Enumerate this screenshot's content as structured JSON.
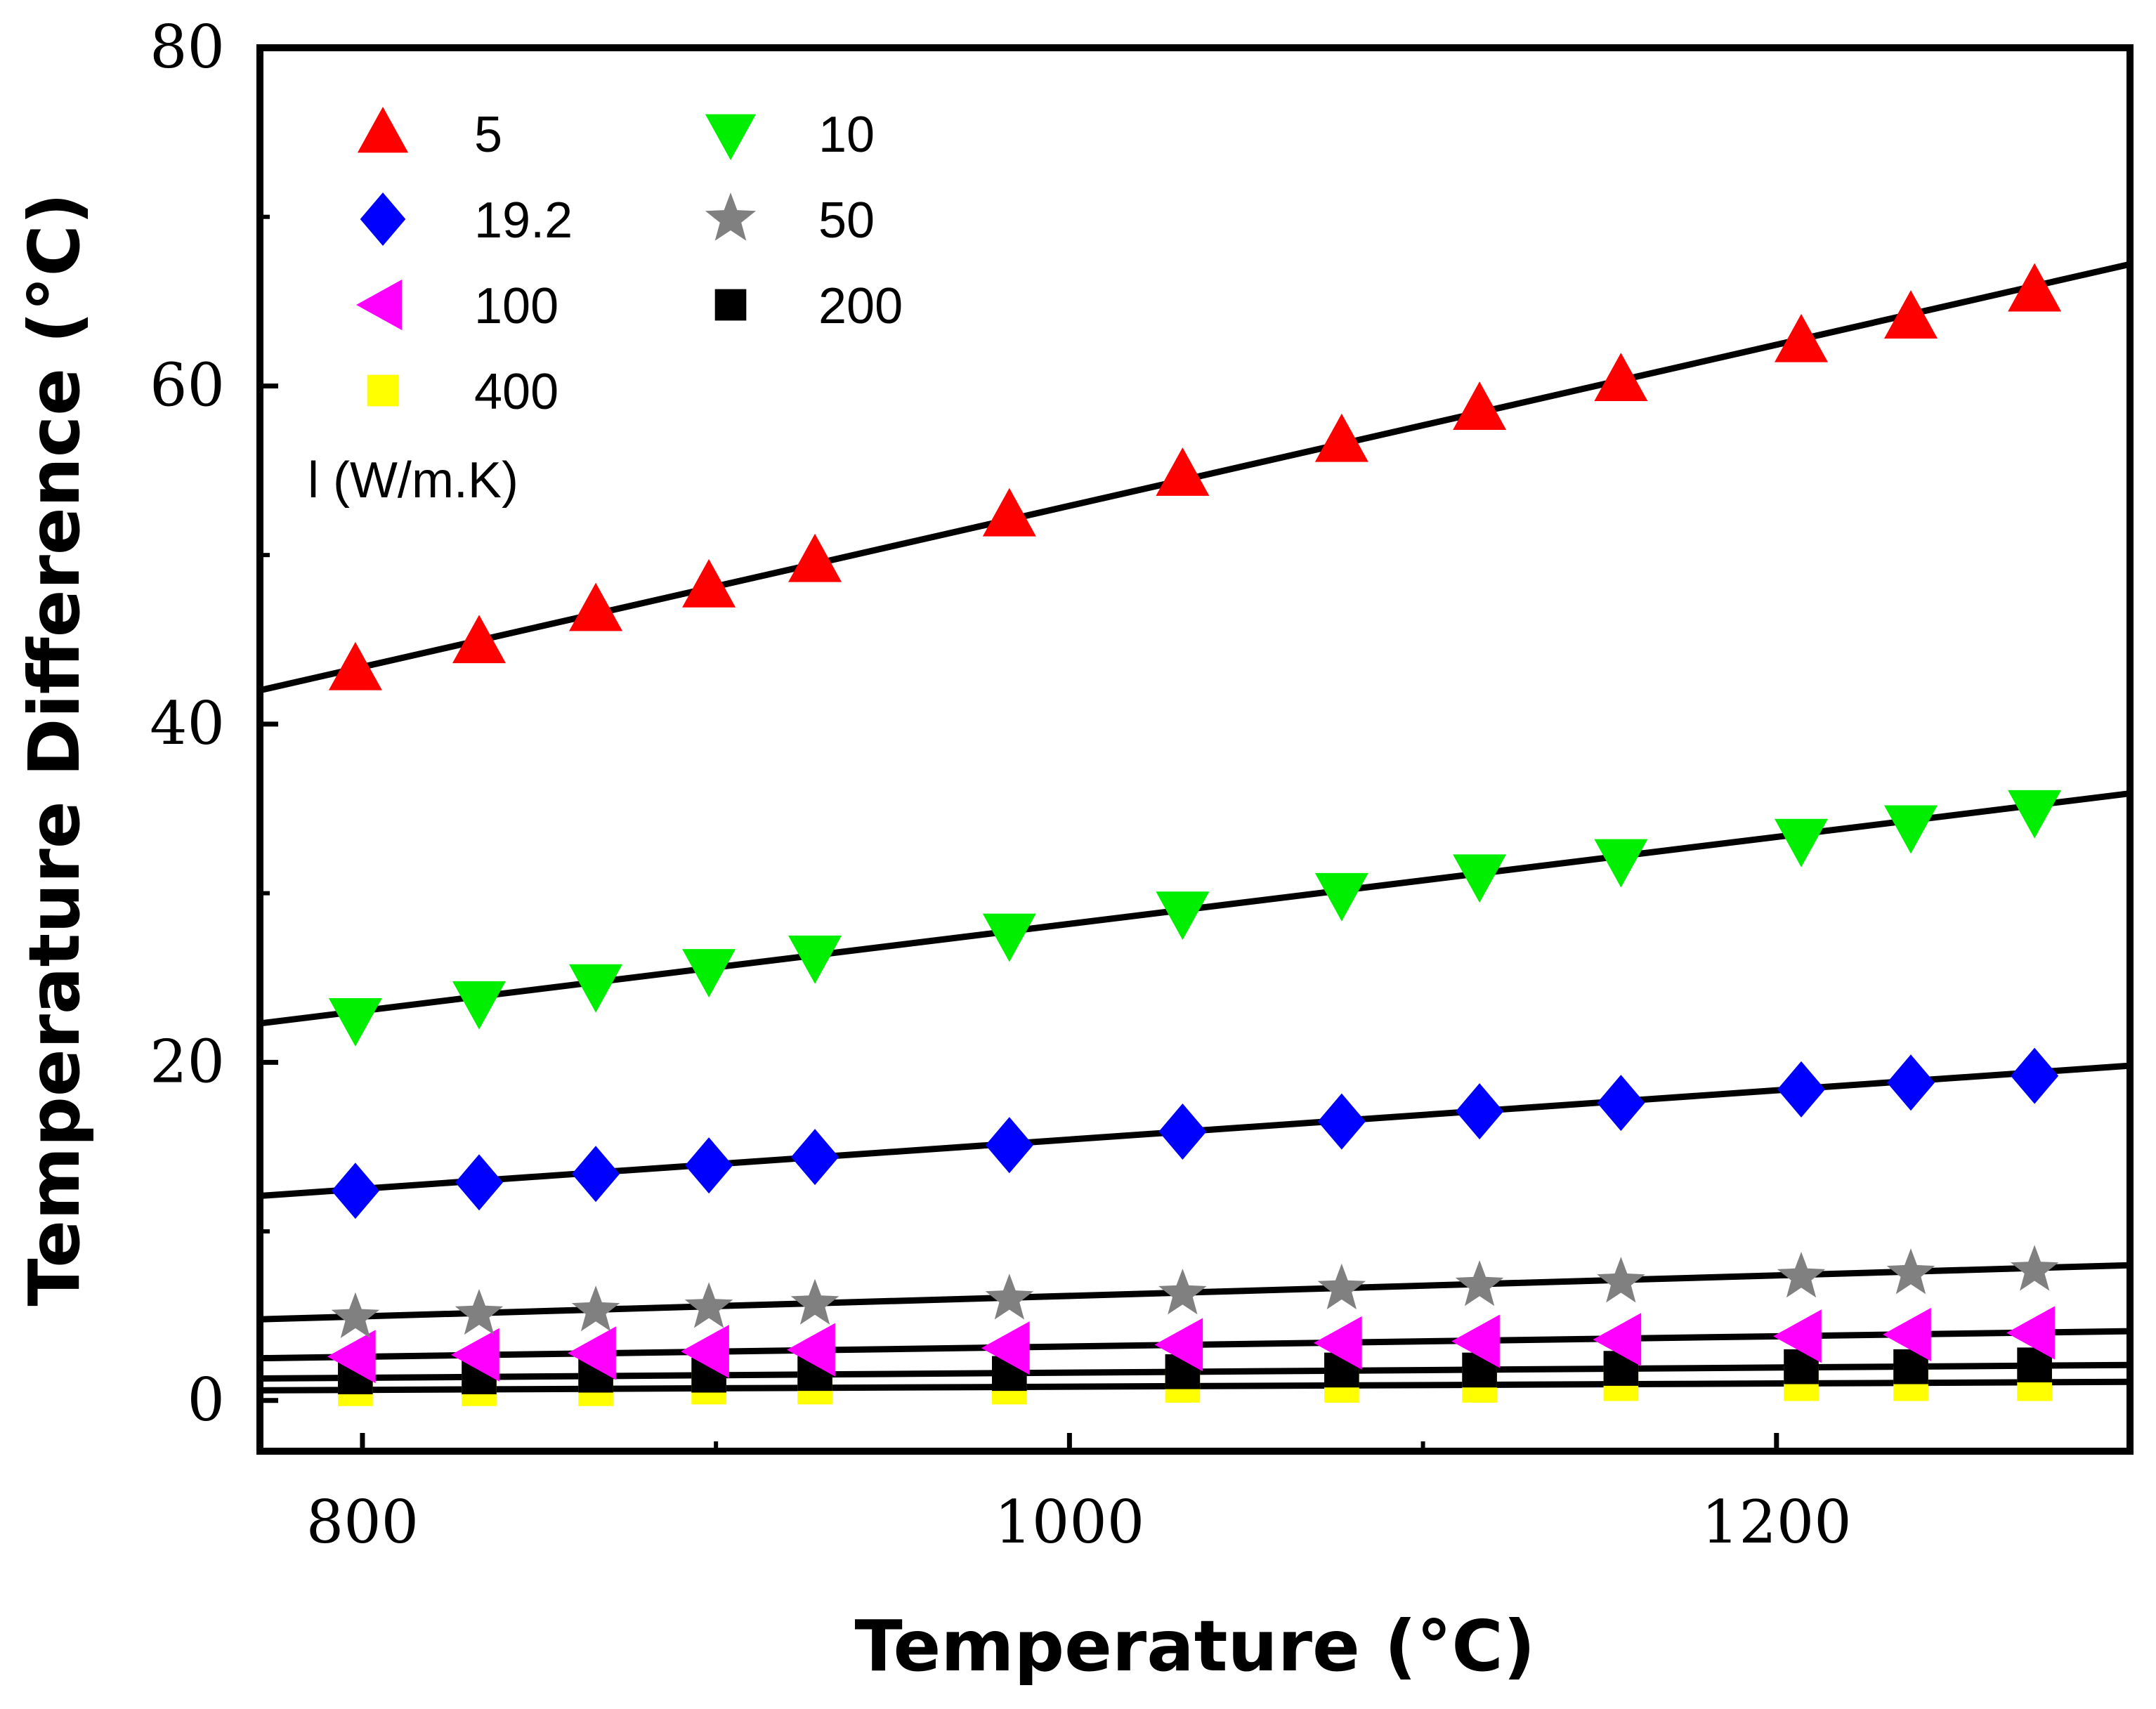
{
  "chart_data": {
    "type": "scatter",
    "title": "",
    "xlabel": "Temperature (°C)",
    "ylabel": "Temperature Difference (°C)",
    "xlim": [
      771,
      1300
    ],
    "ylim": [
      -3,
      80
    ],
    "xticks": [
      800,
      1000,
      1200
    ],
    "xtick_labels": [
      "800",
      "1000",
      "1200"
    ],
    "xminor": [
      900,
      1100
    ],
    "yticks": [
      0,
      20,
      40,
      60,
      80
    ],
    "ytick_labels": [
      "0",
      "20",
      "40",
      "60",
      "80"
    ],
    "yminor": [
      10,
      30,
      50,
      70
    ],
    "x": [
      798,
      833,
      866,
      898,
      928,
      983,
      1032,
      1077,
      1116,
      1156,
      1207,
      1238,
      1273
    ],
    "legend_title": "l (W/m.K)",
    "legend_position": "top-left",
    "series": [
      {
        "name": "5",
        "marker": "triangle-up",
        "color": "#ff0000",
        "values": [
          43.2,
          44.8,
          46.7,
          48.1,
          49.6,
          52.3,
          54.7,
          56.7,
          58.6,
          60.3,
          62.6,
          64.0,
          65.6
        ],
        "fit": [
          42.0,
          67.2
        ]
      },
      {
        "name": "10",
        "marker": "triangle-down",
        "color": "#00ee00",
        "values": [
          22.6,
          23.6,
          24.6,
          25.5,
          26.3,
          27.6,
          28.9,
          30.0,
          31.1,
          32.0,
          33.2,
          34.0,
          34.9
        ],
        "fit": [
          22.3,
          35.9
        ]
      },
      {
        "name": "19.2",
        "marker": "diamond",
        "color": "#0000ff",
        "values": [
          12.4,
          12.9,
          13.4,
          13.9,
          14.4,
          15.1,
          15.9,
          16.5,
          17.1,
          17.6,
          18.4,
          18.8,
          19.2
        ],
        "fit": [
          12.1,
          19.8
        ]
      },
      {
        "name": "50",
        "marker": "star",
        "color": "#808080",
        "values": [
          4.9,
          5.1,
          5.3,
          5.5,
          5.7,
          6.0,
          6.3,
          6.6,
          6.8,
          7.0,
          7.3,
          7.5,
          7.7
        ],
        "fit": [
          4.8,
          8.0
        ]
      },
      {
        "name": "100",
        "marker": "triangle-left",
        "color": "#ff00ff",
        "values": [
          2.6,
          2.7,
          2.8,
          2.9,
          3.0,
          3.1,
          3.3,
          3.4,
          3.5,
          3.6,
          3.8,
          3.9,
          4.0
        ],
        "fit": [
          2.5,
          4.1
        ]
      },
      {
        "name": "200",
        "marker": "square",
        "color": "#000000",
        "values": [
          1.4,
          1.4,
          1.5,
          1.5,
          1.6,
          1.6,
          1.7,
          1.8,
          1.8,
          1.9,
          2.0,
          2.0,
          2.1
        ],
        "fit": [
          1.3,
          2.1
        ]
      },
      {
        "name": "400",
        "marker": "square",
        "color": "#ffff00",
        "values": [
          0.7,
          0.7,
          0.7,
          0.8,
          0.8,
          0.8,
          0.9,
          0.9,
          0.9,
          1.0,
          1.0,
          1.0,
          1.0
        ],
        "fit": [
          0.6,
          1.1
        ]
      }
    ]
  }
}
